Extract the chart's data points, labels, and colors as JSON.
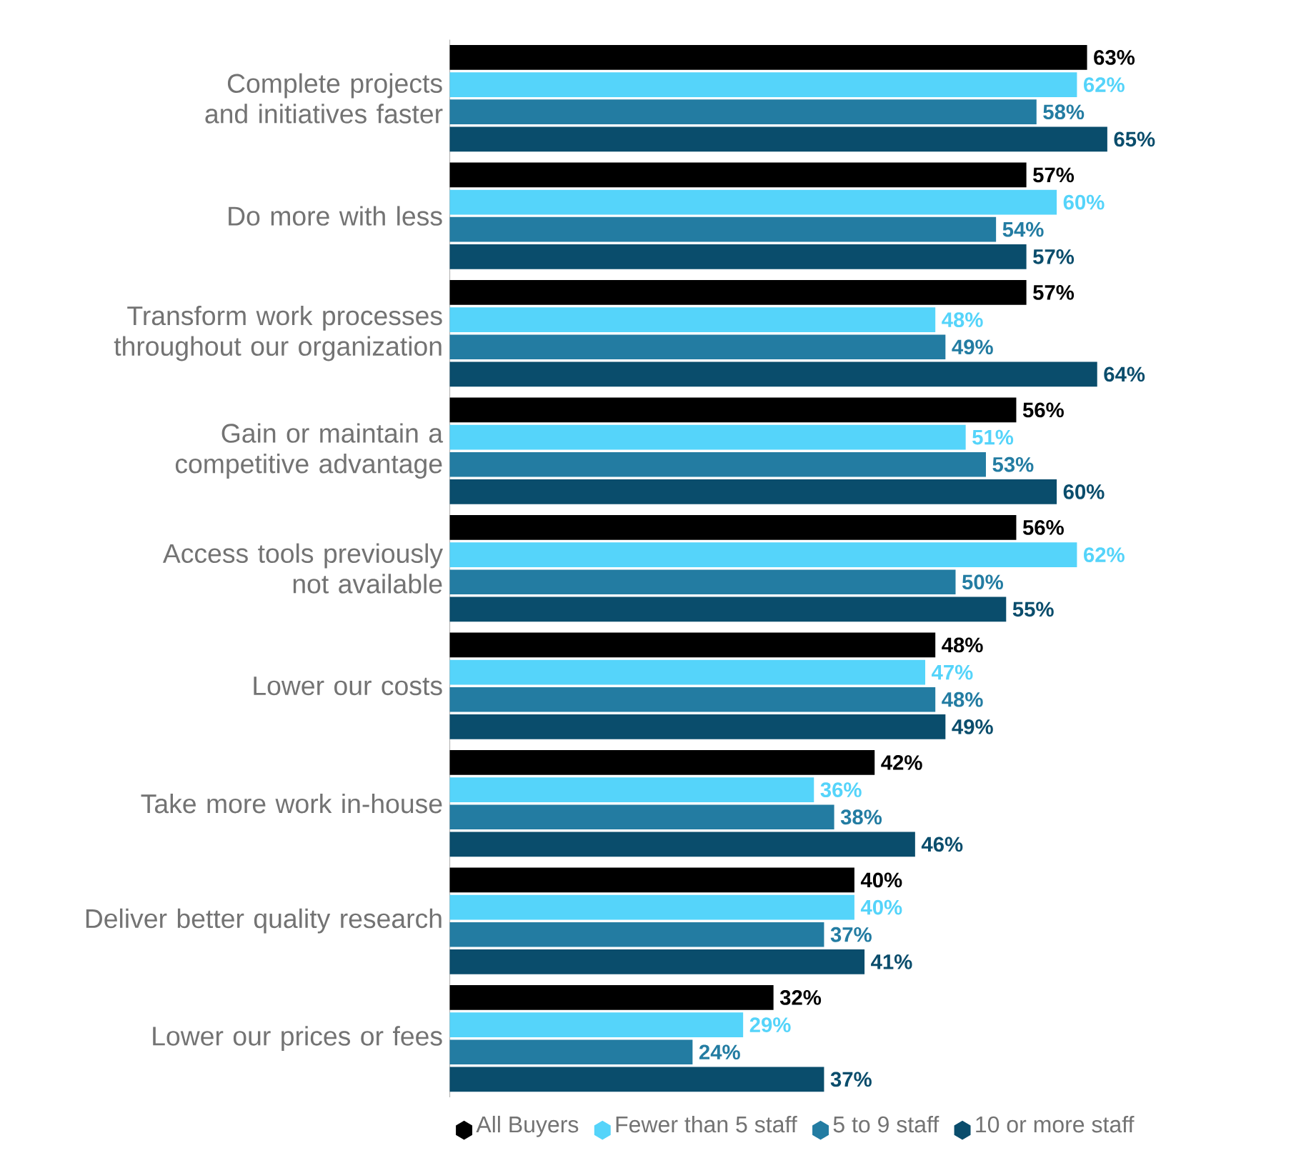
{
  "chart_data": {
    "type": "bar",
    "orientation": "horizontal",
    "categories": [
      "Complete projects and initiatives faster",
      "Do more with less",
      "Transform work processes throughout our organization",
      "Gain or maintain a competitive advantage",
      "Access tools previously not available",
      "Lower our costs",
      "Take more work in-house",
      "Deliver better quality research",
      "Lower our prices or fees"
    ],
    "series": [
      {
        "name": "All Buyers",
        "color": "#000000",
        "values": [
          63,
          57,
          57,
          56,
          56,
          48,
          42,
          40,
          32
        ],
        "value_labels": [
          "63%",
          "57%",
          "57%",
          "56%",
          "56%",
          "48%",
          "42%",
          "40%",
          "32%"
        ]
      },
      {
        "name": "Fewer than 5 staff",
        "color": "#55d4fa",
        "values": [
          62,
          60,
          48,
          51,
          62,
          47,
          36,
          40,
          29
        ],
        "value_labels": [
          "62%",
          "60%",
          "48%",
          "51%",
          "62%",
          "47%",
          "36%",
          "40%",
          "29%"
        ]
      },
      {
        "name": "5 to 9 staff",
        "color": "#237ca2",
        "values": [
          58,
          54,
          49,
          53,
          50,
          48,
          38,
          37,
          24
        ],
        "value_labels": [
          "58%",
          "54%",
          "49%",
          "53%",
          "50%",
          "48%",
          "38%",
          "37%",
          "24%"
        ]
      },
      {
        "name": "10 or more staff",
        "color": "#0a4d6c",
        "values": [
          65,
          57,
          64,
          60,
          55,
          49,
          46,
          41,
          37
        ],
        "value_labels": [
          "65%",
          "57%",
          "64%",
          "60%",
          "55%",
          "49%",
          "46%",
          "41%",
          "37%"
        ]
      }
    ],
    "tick_labels": "y",
    "grid": false,
    "legend": "bottom"
  }
}
